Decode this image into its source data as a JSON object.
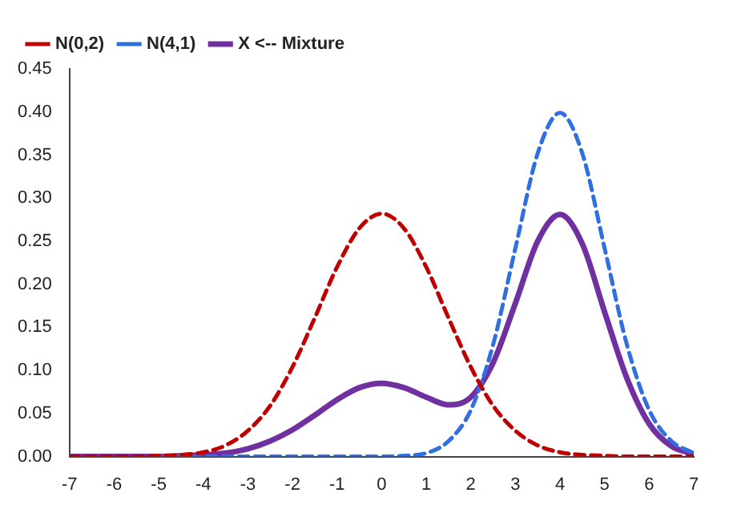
{
  "chart_data": {
    "type": "line",
    "x": [
      -7,
      -6.5,
      -6,
      -5.5,
      -5,
      -4.5,
      -4,
      -3.5,
      -3,
      -2.5,
      -2,
      -1.5,
      -1,
      -0.5,
      0,
      0.5,
      1,
      1.5,
      2,
      2.5,
      3,
      3.5,
      4,
      4.5,
      5,
      5.5,
      6,
      6.5,
      7
    ],
    "series": [
      {
        "name": "N(0,2)",
        "color": "#c00000",
        "line_style": "dashed",
        "values": [
          0,
          0,
          0,
          0,
          0.001,
          0.002,
          0.005,
          0.013,
          0.03,
          0.059,
          0.104,
          0.161,
          0.22,
          0.265,
          0.282,
          0.265,
          0.22,
          0.161,
          0.104,
          0.059,
          0.03,
          0.013,
          0.005,
          0.002,
          0.001,
          0,
          0,
          0,
          0
        ]
      },
      {
        "name": "N(4,1)",
        "color": "#2f6fe0",
        "line_style": "dashed",
        "values": [
          null,
          null,
          null,
          null,
          0,
          0,
          0,
          0,
          0,
          0,
          0,
          0,
          0,
          0,
          0,
          0.001,
          0.004,
          0.018,
          0.054,
          0.13,
          0.242,
          0.352,
          0.399,
          0.352,
          0.242,
          0.13,
          0.054,
          0.018,
          0.004
        ]
      },
      {
        "name": "X <-- Mixture",
        "color": "#7030a0",
        "line_style": "solid",
        "values": [
          0,
          0,
          0,
          0,
          0,
          0.001,
          0.002,
          0.004,
          0.009,
          0.018,
          0.031,
          0.048,
          0.066,
          0.08,
          0.085,
          0.08,
          0.069,
          0.06,
          0.069,
          0.109,
          0.178,
          0.25,
          0.281,
          0.247,
          0.168,
          0.091,
          0.038,
          0.012,
          0.003
        ]
      }
    ],
    "xlim": [
      -7,
      7
    ],
    "xticks": [
      -7,
      -6,
      -5,
      -4,
      -3,
      -2,
      -1,
      0,
      1,
      2,
      3,
      4,
      5,
      6,
      7
    ],
    "ylim": [
      0,
      0.45
    ],
    "yticks": [
      {
        "value": 0,
        "label": "0.00"
      },
      {
        "value": 0.05,
        "label": "0.05"
      },
      {
        "value": 0.1,
        "label": "0.10"
      },
      {
        "value": 0.15,
        "label": "0.15"
      },
      {
        "value": 0.2,
        "label": "0.20"
      },
      {
        "value": 0.25,
        "label": "0.25"
      },
      {
        "value": 0.3,
        "label": "0.30"
      },
      {
        "value": 0.35,
        "label": "0.35"
      },
      {
        "value": 0.4,
        "label": "0.40"
      },
      {
        "value": 0.45,
        "label": "0.45"
      }
    ],
    "grid": false,
    "legend": "top left",
    "marker": "none"
  }
}
